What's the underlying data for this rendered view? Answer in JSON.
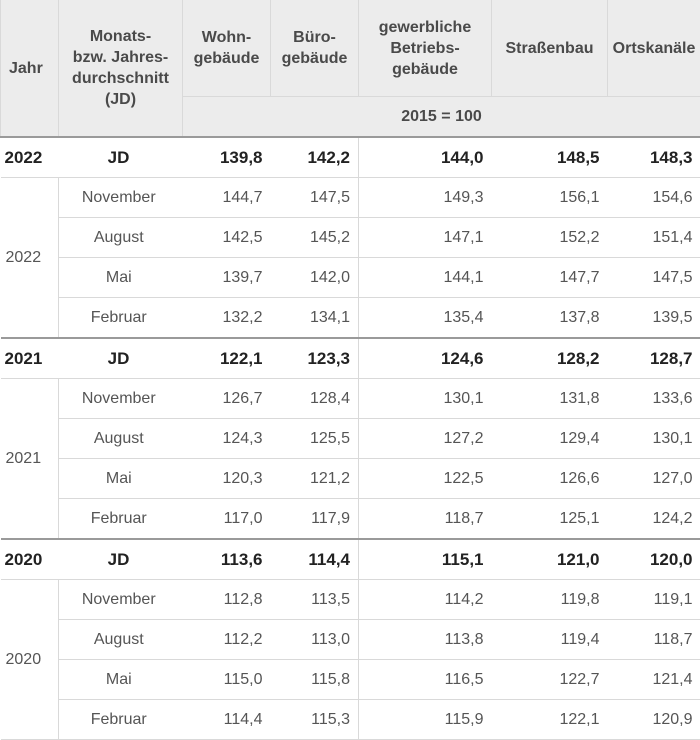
{
  "header": {
    "year": "Jahr",
    "period": "Monats-\nbzw. Jahres-\ndurchschnitt\n(JD)",
    "columns": [
      "Wohn-\ngebäude",
      "Büro-\ngebäude",
      "gewerbliche\nBetriebs-\ngebäude",
      "Straßenbau",
      "Ortskanäle"
    ],
    "unit": "2015 = 100"
  },
  "groups": [
    {
      "year": "2022",
      "summary": {
        "period": "JD",
        "values": [
          "139,8",
          "142,2",
          "144,0",
          "148,5",
          "148,3"
        ]
      },
      "rows": [
        {
          "period": "November",
          "values": [
            "144,7",
            "147,5",
            "149,3",
            "156,1",
            "154,6"
          ]
        },
        {
          "period": "August",
          "values": [
            "142,5",
            "145,2",
            "147,1",
            "152,2",
            "151,4"
          ]
        },
        {
          "period": "Mai",
          "values": [
            "139,7",
            "142,0",
            "144,1",
            "147,7",
            "147,5"
          ]
        },
        {
          "period": "Februar",
          "values": [
            "132,2",
            "134,1",
            "135,4",
            "137,8",
            "139,5"
          ]
        }
      ]
    },
    {
      "year": "2021",
      "summary": {
        "period": "JD",
        "values": [
          "122,1",
          "123,3",
          "124,6",
          "128,2",
          "128,7"
        ]
      },
      "rows": [
        {
          "period": "November",
          "values": [
            "126,7",
            "128,4",
            "130,1",
            "131,8",
            "133,6"
          ]
        },
        {
          "period": "August",
          "values": [
            "124,3",
            "125,5",
            "127,2",
            "129,4",
            "130,1"
          ]
        },
        {
          "period": "Mai",
          "values": [
            "120,3",
            "121,2",
            "122,5",
            "126,6",
            "127,0"
          ]
        },
        {
          "period": "Februar",
          "values": [
            "117,0",
            "117,9",
            "118,7",
            "125,1",
            "124,2"
          ]
        }
      ]
    },
    {
      "year": "2020",
      "summary": {
        "period": "JD",
        "values": [
          "113,6",
          "114,4",
          "115,1",
          "121,0",
          "120,0"
        ]
      },
      "rows": [
        {
          "period": "November",
          "values": [
            "112,8",
            "113,5",
            "114,2",
            "119,8",
            "119,1"
          ]
        },
        {
          "period": "August",
          "values": [
            "112,2",
            "113,0",
            "113,8",
            "119,4",
            "118,7"
          ]
        },
        {
          "period": "Mai",
          "values": [
            "115,0",
            "115,8",
            "116,5",
            "122,7",
            "121,4"
          ]
        },
        {
          "period": "Februar",
          "values": [
            "114,4",
            "115,3",
            "115,9",
            "122,1",
            "120,9"
          ]
        }
      ]
    }
  ]
}
